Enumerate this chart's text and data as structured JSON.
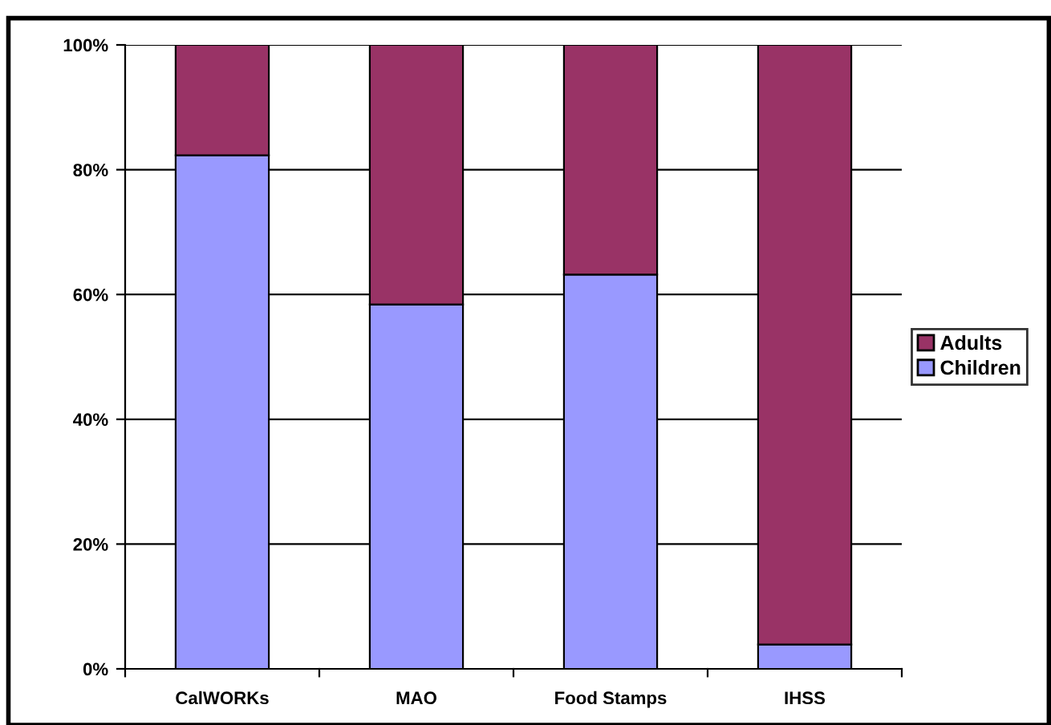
{
  "chart_data": {
    "type": "bar",
    "stacked": true,
    "categories": [
      "CalWORKs",
      "MAO",
      "Food Stamps",
      "IHSS"
    ],
    "series": [
      {
        "name": "Children",
        "color": "#9999ff",
        "values": [
          82.3,
          58.4,
          63.2,
          3.9
        ]
      },
      {
        "name": "Adults",
        "color": "#993366",
        "values": [
          17.7,
          41.6,
          36.8,
          96.1
        ]
      }
    ],
    "ylim": [
      0,
      100
    ],
    "yticks": [
      {
        "value": 0,
        "label": "0%"
      },
      {
        "value": 20,
        "label": "20%"
      },
      {
        "value": 40,
        "label": "40%"
      },
      {
        "value": 60,
        "label": "60%"
      },
      {
        "value": 80,
        "label": "80%"
      },
      {
        "value": 100,
        "label": "100%"
      }
    ],
    "grid": "y",
    "legend": "right"
  }
}
